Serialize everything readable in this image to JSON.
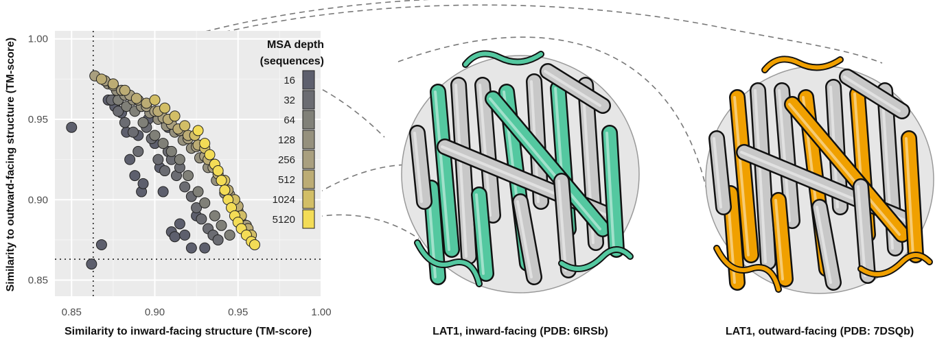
{
  "chart_data": {
    "type": "scatter",
    "xlabel": "Similarity to inward-facing structure (TM-score)",
    "ylabel": "Similarity to outward-facing structure (TM-score)",
    "xlim": [
      0.84,
      1.0
    ],
    "ylim": [
      0.84,
      1.005
    ],
    "x_ticks": [
      "0.85",
      "0.90",
      "0.95",
      "1.00"
    ],
    "y_ticks": [
      "0.85",
      "0.90",
      "0.95",
      "1.00"
    ],
    "grid": true,
    "reference_lines": {
      "x": 0.863,
      "y": 0.863
    },
    "legend": {
      "title_line1": "MSA depth",
      "title_line2": "(sequences)",
      "placement": "top-right inside",
      "levels": [
        "16",
        "32",
        "64",
        "128",
        "256",
        "512",
        "1024",
        "5120"
      ],
      "colors": [
        "#5d5f6d",
        "#6b6c72",
        "#808078",
        "#95907d",
        "#a99f7f",
        "#bcac74",
        "#d2be66",
        "#f3dc56"
      ]
    },
    "series": [
      {
        "depth": "16",
        "points": [
          [
            0.85,
            0.945
          ],
          [
            0.862,
            0.86
          ],
          [
            0.868,
            0.872
          ],
          [
            0.872,
            0.962
          ],
          [
            0.876,
            0.958
          ],
          [
            0.88,
            0.954
          ],
          [
            0.883,
            0.942
          ],
          [
            0.885,
            0.925
          ],
          [
            0.888,
            0.915
          ],
          [
            0.89,
            0.94
          ],
          [
            0.892,
            0.905
          ],
          [
            0.893,
            0.91
          ],
          [
            0.896,
            0.95
          ],
          [
            0.9,
            0.935
          ],
          [
            0.903,
            0.92
          ],
          [
            0.905,
            0.905
          ],
          [
            0.908,
            0.945
          ],
          [
            0.91,
            0.88
          ],
          [
            0.912,
            0.877
          ],
          [
            0.915,
            0.885
          ],
          [
            0.918,
            0.878
          ],
          [
            0.922,
            0.87
          ],
          [
            0.925,
            0.89
          ],
          [
            0.93,
            0.87
          ]
        ]
      },
      {
        "depth": "32",
        "points": [
          [
            0.874,
            0.962
          ],
          [
            0.878,
            0.955
          ],
          [
            0.882,
            0.948
          ],
          [
            0.887,
            0.942
          ],
          [
            0.89,
            0.93
          ],
          [
            0.895,
            0.945
          ],
          [
            0.898,
            0.938
          ],
          [
            0.902,
            0.925
          ],
          [
            0.906,
            0.918
          ],
          [
            0.908,
            0.93
          ],
          [
            0.91,
            0.925
          ],
          [
            0.913,
            0.915
          ],
          [
            0.915,
            0.92
          ],
          [
            0.918,
            0.908
          ],
          [
            0.922,
            0.902
          ],
          [
            0.925,
            0.895
          ],
          [
            0.928,
            0.888
          ],
          [
            0.932,
            0.882
          ],
          [
            0.935,
            0.878
          ],
          [
            0.938,
            0.875
          ]
        ]
      },
      {
        "depth": "64",
        "points": [
          [
            0.878,
            0.962
          ],
          [
            0.883,
            0.958
          ],
          [
            0.888,
            0.955
          ],
          [
            0.893,
            0.948
          ],
          [
            0.9,
            0.94
          ],
          [
            0.905,
            0.935
          ],
          [
            0.91,
            0.93
          ],
          [
            0.915,
            0.925
          ],
          [
            0.92,
            0.915
          ],
          [
            0.926,
            0.905
          ],
          [
            0.93,
            0.898
          ],
          [
            0.936,
            0.89
          ],
          [
            0.94,
            0.884
          ],
          [
            0.945,
            0.878
          ]
        ]
      },
      {
        "depth": "128",
        "points": [
          [
            0.872,
            0.972
          ],
          [
            0.877,
            0.968
          ],
          [
            0.882,
            0.965
          ],
          [
            0.887,
            0.962
          ],
          [
            0.892,
            0.958
          ],
          [
            0.897,
            0.954
          ],
          [
            0.902,
            0.95
          ],
          [
            0.907,
            0.946
          ],
          [
            0.912,
            0.942
          ],
          [
            0.917,
            0.937
          ],
          [
            0.922,
            0.932
          ],
          [
            0.927,
            0.926
          ],
          [
            0.932,
            0.92
          ],
          [
            0.937,
            0.912
          ],
          [
            0.942,
            0.904
          ],
          [
            0.947,
            0.895
          ],
          [
            0.952,
            0.886
          ]
        ]
      },
      {
        "depth": "256",
        "points": [
          [
            0.864,
            0.977
          ],
          [
            0.87,
            0.974
          ],
          [
            0.875,
            0.971
          ],
          [
            0.88,
            0.968
          ],
          [
            0.885,
            0.965
          ],
          [
            0.89,
            0.962
          ],
          [
            0.895,
            0.958
          ],
          [
            0.9,
            0.955
          ],
          [
            0.905,
            0.951
          ],
          [
            0.91,
            0.947
          ],
          [
            0.915,
            0.943
          ],
          [
            0.92,
            0.938
          ],
          [
            0.925,
            0.933
          ],
          [
            0.93,
            0.927
          ],
          [
            0.935,
            0.92
          ],
          [
            0.94,
            0.912
          ],
          [
            0.945,
            0.903
          ],
          [
            0.95,
            0.893
          ],
          [
            0.955,
            0.884
          ]
        ]
      },
      {
        "depth": "512",
        "points": [
          [
            0.868,
            0.975
          ],
          [
            0.875,
            0.972
          ],
          [
            0.882,
            0.968
          ],
          [
            0.889,
            0.963
          ],
          [
            0.895,
            0.96
          ],
          [
            0.902,
            0.955
          ],
          [
            0.908,
            0.95
          ],
          [
            0.914,
            0.944
          ],
          [
            0.92,
            0.94
          ],
          [
            0.926,
            0.934
          ],
          [
            0.932,
            0.925
          ],
          [
            0.938,
            0.916
          ],
          [
            0.944,
            0.906
          ],
          [
            0.95,
            0.896
          ],
          [
            0.956,
            0.882
          ]
        ]
      },
      {
        "depth": "1024",
        "points": [
          [
            0.9,
            0.962
          ],
          [
            0.906,
            0.957
          ],
          [
            0.912,
            0.952
          ],
          [
            0.918,
            0.946
          ],
          [
            0.924,
            0.94
          ],
          [
            0.93,
            0.932
          ],
          [
            0.936,
            0.922
          ],
          [
            0.942,
            0.912
          ],
          [
            0.948,
            0.9
          ],
          [
            0.952,
            0.89
          ],
          [
            0.958,
            0.878
          ]
        ]
      },
      {
        "depth": "5120",
        "points": [
          [
            0.926,
            0.943
          ],
          [
            0.93,
            0.935
          ],
          [
            0.933,
            0.928
          ],
          [
            0.936,
            0.922
          ],
          [
            0.938,
            0.918
          ],
          [
            0.94,
            0.912
          ],
          [
            0.942,
            0.906
          ],
          [
            0.944,
            0.9
          ],
          [
            0.946,
            0.895
          ],
          [
            0.948,
            0.89
          ],
          [
            0.95,
            0.886
          ],
          [
            0.952,
            0.882
          ],
          [
            0.955,
            0.878
          ],
          [
            0.958,
            0.874
          ],
          [
            0.96,
            0.872
          ]
        ]
      }
    ]
  },
  "structures": {
    "inward": {
      "caption": "LAT1, inward-facing (PDB: 6IRSb)",
      "accent": "#54c8a0",
      "helix_color": "#c8c8c8"
    },
    "outward": {
      "caption": "LAT1, outward-facing (PDB: 7DSQb)",
      "accent": "#f0a000",
      "helix_color": "#c8c8c8"
    }
  }
}
